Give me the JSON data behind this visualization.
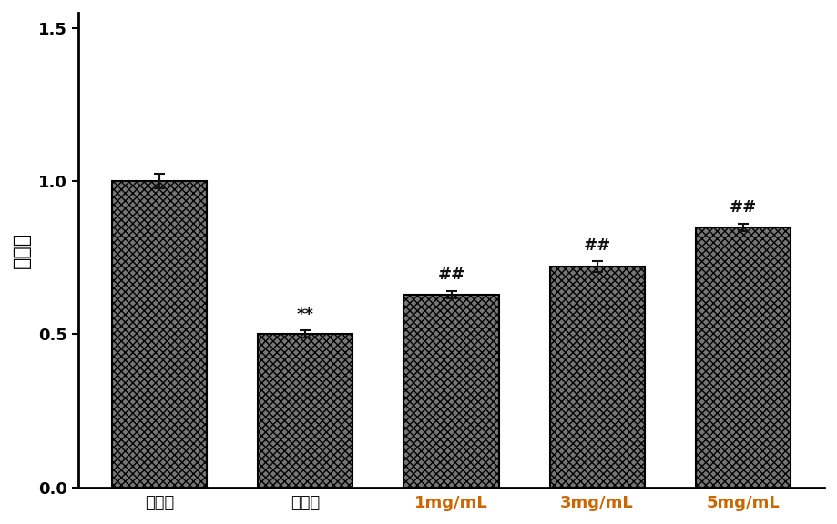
{
  "categories": [
    "对照组",
    "模型组",
    "1mg/mL",
    "3mg/mL",
    "5mg/mL"
  ],
  "values": [
    1.0,
    0.5,
    0.63,
    0.72,
    0.85
  ],
  "errors": [
    0.025,
    0.012,
    0.012,
    0.018,
    0.012
  ],
  "bar_color": "#767676",
  "bar_hatch": "xxxx",
  "ylabel": "存活率",
  "ylim": [
    0.0,
    1.55
  ],
  "yticks": [
    0.0,
    0.5,
    1.0,
    1.5
  ],
  "ytick_labels": [
    "0.0",
    "0.5",
    "1.0",
    "1.5"
  ],
  "significance": [
    "",
    "**",
    "##",
    "##",
    "##"
  ],
  "sig_colors": [
    "black",
    "#111111",
    "#111111",
    "#111111",
    "#111111"
  ],
  "xlabel_colors": [
    "#111111",
    "#111111",
    "#cc6600",
    "#cc6600",
    "#cc6600"
  ],
  "background_color": "#ffffff",
  "bar_edge_color": "#000000",
  "errorbar_color": "#111111",
  "errorbar_capsize": 4,
  "bar_width": 0.65,
  "axis_fontsize": 15,
  "tick_fontsize": 13,
  "sig_fontsize": 13,
  "ylabel_fontsize": 16
}
